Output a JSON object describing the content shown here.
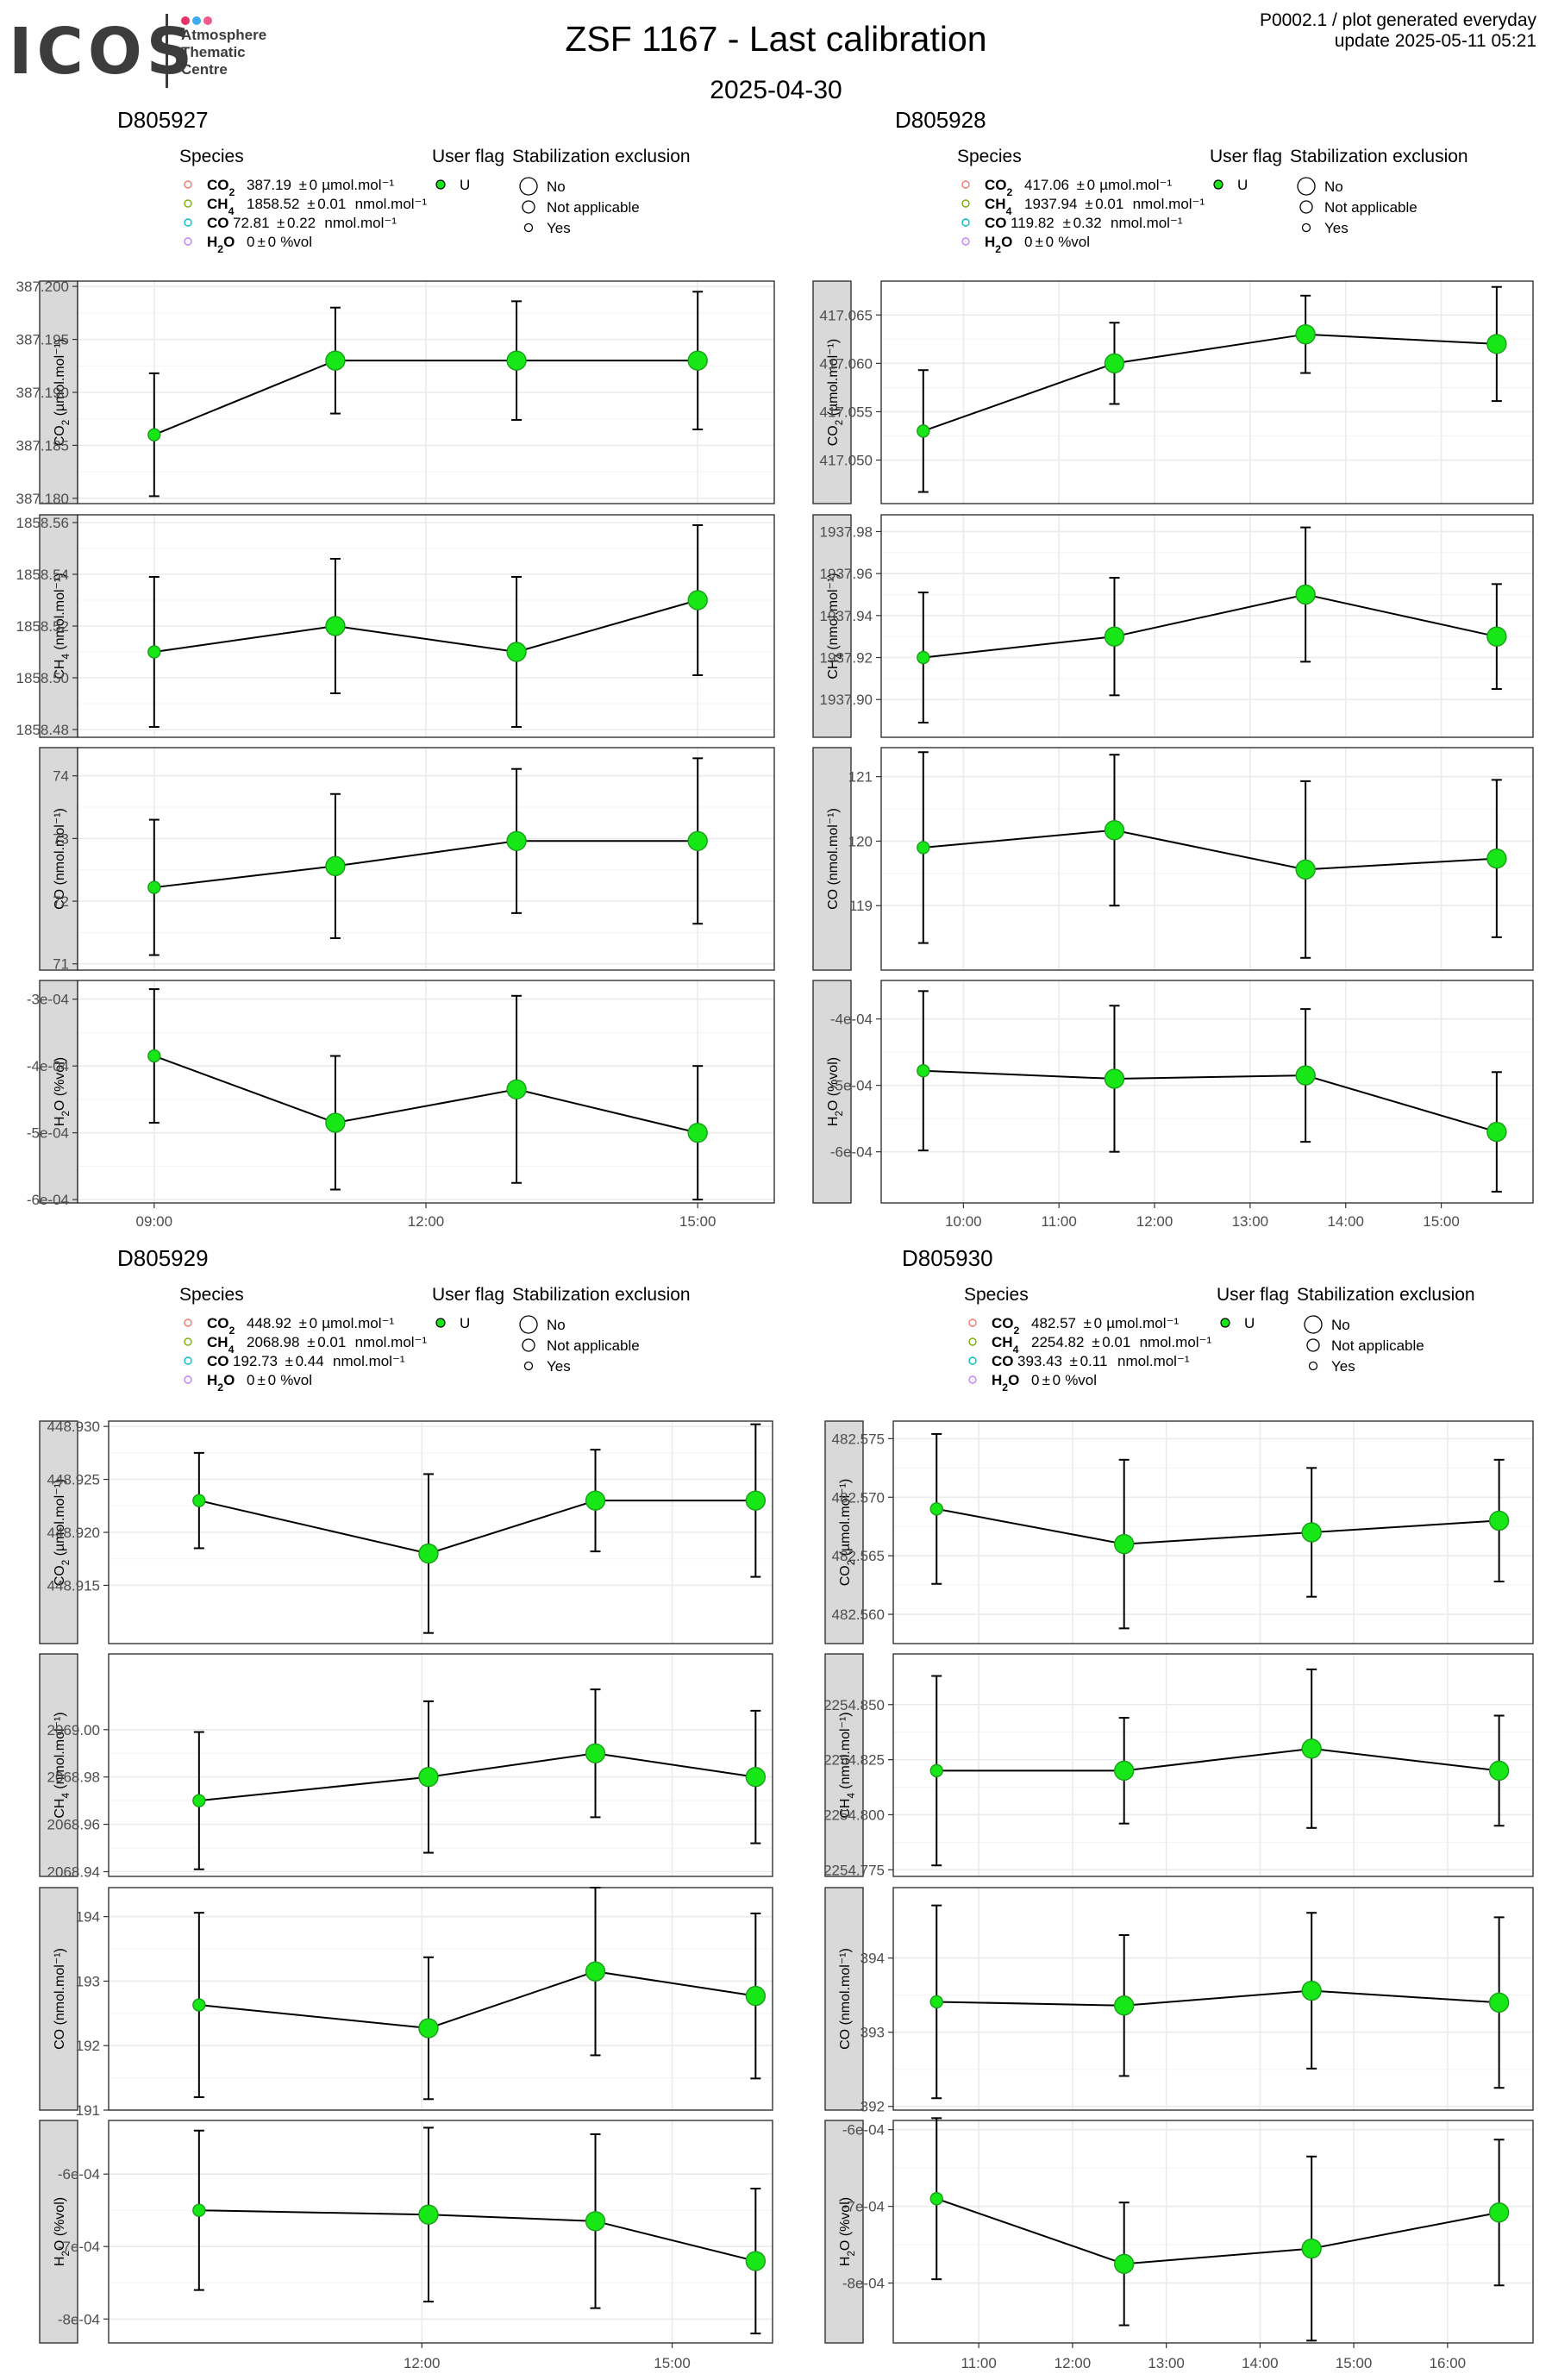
{
  "header": {
    "logo_text": "ICOS",
    "logo_subtitle": [
      "Atmosphere",
      "Thematic",
      "Centre"
    ],
    "title": "ZSF 1167 - Last calibration",
    "subtitle": "2025-04-30",
    "meta_line1": "P0002.1 / plot generated everyday",
    "meta_line2": "update  2025-05-11 05:21"
  },
  "colors": {
    "logo_dots": [
      "#e8336b",
      "#3fa9f5",
      "#f05a8c"
    ],
    "point_fill": "#17e617",
    "point_stroke": "#1a9e1a",
    "panel_strip": "#d9d9d9",
    "grid": "#ebebeb",
    "species_colors": {
      "CO2": "#f8766d",
      "CH4": "#7cae00",
      "CO": "#00bfc4",
      "H2O": "#c77cff"
    }
  },
  "legend_titles": {
    "species": "Species",
    "user_flag": "User flag",
    "stabilization": "Stabilization exclusion"
  },
  "chart_data": [
    {
      "type": "line",
      "cylinder": "D805927",
      "legend_species": [
        {
          "sp": "CO2",
          "value": "387.19",
          "unc": "0",
          "unit": "µmol.mol⁻¹"
        },
        {
          "sp": "CH4",
          "value": "1858.52",
          "unc": "0.01",
          "unit": "nmol.mol⁻¹"
        },
        {
          "sp": "CO",
          "value": "72.81",
          "unc": "0.22",
          "unit": "nmol.mol⁻¹"
        },
        {
          "sp": "H2O",
          "value": "0",
          "unc": "0",
          "unit": "%vol"
        }
      ],
      "user_flag": [
        "U"
      ],
      "stabilization": [
        "No",
        "Not applicable",
        "Yes"
      ],
      "x_ticks": [
        {
          "label": "09:00",
          "t": 9
        },
        {
          "label": "12:00",
          "t": 12
        },
        {
          "label": "15:00",
          "t": 15
        }
      ],
      "x_range": [
        8.25,
        15.75
      ],
      "points_time": [
        9.0,
        11.0,
        13.0,
        15.0
      ],
      "stab": [
        "Yes",
        "No",
        "No",
        "No"
      ],
      "facets": [
        {
          "species": "CO2",
          "unit": "µmol.mol⁻¹",
          "y": [
            387.186,
            387.193,
            387.193,
            387.193
          ],
          "err": [
            0.0058,
            0.005,
            0.0056,
            0.0065
          ],
          "ylim": [
            387.1795,
            387.2005
          ],
          "yticks": [
            "387.180",
            "387.185",
            "387.190",
            "387.195",
            "387.200"
          ]
        },
        {
          "species": "CH4",
          "unit": "nmol.mol⁻¹",
          "y": [
            1858.51,
            1858.52,
            1858.51,
            1858.53
          ],
          "err": [
            0.029,
            0.026,
            0.029,
            0.029
          ],
          "ylim": [
            1858.477,
            1858.563
          ],
          "yticks": [
            "1858.48",
            "1858.50",
            "1858.52",
            "1858.54",
            "1858.56"
          ]
        },
        {
          "species": "CO",
          "unit": "nmol.mol⁻¹",
          "y": [
            72.22,
            72.56,
            72.96,
            72.96
          ],
          "err": [
            1.08,
            1.15,
            1.15,
            1.32
          ],
          "ylim": [
            70.9,
            74.45
          ],
          "yticks": [
            "71",
            "72",
            "73",
            "74"
          ]
        },
        {
          "species": "H2O",
          "unit": "%vol",
          "y": [
            -0.000385,
            -0.000485,
            -0.000435,
            -0.0005
          ],
          "err": [
            0.0001,
            0.0001,
            0.00014,
            0.0001
          ],
          "ylim": [
            -0.000605,
            -0.000272
          ],
          "yticks": [
            "-6e-04",
            "-5e-04",
            "-4e-04",
            "-3e-04"
          ]
        }
      ]
    },
    {
      "type": "line",
      "cylinder": "D805928",
      "legend_species": [
        {
          "sp": "CO2",
          "value": "417.06",
          "unc": "0",
          "unit": "µmol.mol⁻¹"
        },
        {
          "sp": "CH4",
          "value": "1937.94",
          "unc": "0.01",
          "unit": "nmol.mol⁻¹"
        },
        {
          "sp": "CO",
          "value": "119.82",
          "unc": "0.32",
          "unit": "nmol.mol⁻¹"
        },
        {
          "sp": "H2O",
          "value": "0",
          "unc": "0",
          "unit": "%vol"
        }
      ],
      "user_flag": [
        "U"
      ],
      "stabilization": [
        "No",
        "Not applicable",
        "Yes"
      ],
      "x_ticks": [
        {
          "label": "10:00",
          "t": 10
        },
        {
          "label": "11:00",
          "t": 11
        },
        {
          "label": "12:00",
          "t": 12
        },
        {
          "label": "13:00",
          "t": 13
        },
        {
          "label": "14:00",
          "t": 14
        },
        {
          "label": "15:00",
          "t": 15
        }
      ],
      "x_range": [
        9.23,
        15.87
      ],
      "points_time": [
        9.58,
        11.58,
        13.58,
        15.58
      ],
      "stab": [
        "Yes",
        "No",
        "No",
        "No"
      ],
      "facets": [
        {
          "species": "CO2",
          "unit": "µmol.mol⁻¹",
          "y": [
            417.053,
            417.06,
            417.063,
            417.062
          ],
          "err": [
            0.0063,
            0.0042,
            0.004,
            0.0059
          ],
          "ylim": [
            417.0455,
            417.0685
          ],
          "yticks": [
            "417.050",
            "417.055",
            "417.060",
            "417.065"
          ]
        },
        {
          "species": "CH4",
          "unit": "nmol.mol⁻¹",
          "y": [
            1937.92,
            1937.93,
            1937.95,
            1937.93
          ],
          "err": [
            0.031,
            0.028,
            0.032,
            0.025
          ],
          "ylim": [
            1937.882,
            1937.988
          ],
          "yticks": [
            "1937.90",
            "1937.92",
            "1937.94",
            "1937.96",
            "1937.98"
          ]
        },
        {
          "species": "CO",
          "unit": "nmol.mol⁻¹",
          "y": [
            119.9,
            120.17,
            119.56,
            119.73
          ],
          "err": [
            1.48,
            1.17,
            1.37,
            1.22
          ],
          "ylim": [
            118.0,
            121.45
          ],
          "yticks": [
            "119",
            "120",
            "121"
          ]
        },
        {
          "species": "H2O",
          "unit": "%vol",
          "y": [
            -0.000478,
            -0.00049,
            -0.000485,
            -0.00057
          ],
          "err": [
            0.00012,
            0.00011,
            0.0001,
            9e-05
          ],
          "ylim": [
            -0.000677,
            -0.000342
          ],
          "yticks": [
            "-6e-04",
            "-5e-04",
            "-4e-04"
          ]
        }
      ]
    },
    {
      "type": "line",
      "cylinder": "D805929",
      "legend_species": [
        {
          "sp": "CO2",
          "value": "448.92",
          "unc": "0",
          "unit": "µmol.mol⁻¹"
        },
        {
          "sp": "CH4",
          "value": "2068.98",
          "unc": "0.01",
          "unit": "nmol.mol⁻¹"
        },
        {
          "sp": "CO",
          "value": "192.73",
          "unc": "0.44",
          "unit": "nmol.mol⁻¹"
        },
        {
          "sp": "H2O",
          "value": "0",
          "unc": "0",
          "unit": "%vol"
        }
      ],
      "user_flag": [
        "U"
      ],
      "stabilization": [
        "No",
        "Not applicable",
        "Yes"
      ],
      "x_ticks": [
        {
          "label": "12:00",
          "t": 12
        },
        {
          "label": "15:00",
          "t": 15
        }
      ],
      "x_range": [
        8.35,
        16.1
      ],
      "points_time": [
        9.33,
        12.08,
        14.08,
        16.0
      ],
      "stab": [
        "Yes",
        "No",
        "No",
        "No"
      ],
      "facets": [
        {
          "species": "CO2",
          "unit": "µmol.mol⁻¹",
          "y": [
            448.923,
            448.918,
            448.923,
            448.923
          ],
          "err": [
            0.0045,
            0.0075,
            0.0048,
            0.0072
          ],
          "ylim": [
            448.9095,
            448.9305
          ],
          "yticks": [
            "448.915",
            "448.920",
            "448.925",
            "448.930"
          ]
        },
        {
          "species": "CH4",
          "unit": "nmol.mol⁻¹",
          "y": [
            2068.97,
            2068.98,
            2068.99,
            2068.98
          ],
          "err": [
            0.029,
            0.032,
            0.027,
            0.028
          ],
          "ylim": [
            2068.938,
            2069.032
          ],
          "yticks": [
            "2068.94",
            "2068.96",
            "2068.98",
            "2069.00"
          ]
        },
        {
          "species": "CO",
          "unit": "nmol.mol⁻¹",
          "y": [
            192.63,
            192.27,
            193.15,
            192.77
          ],
          "err": [
            1.43,
            1.1,
            1.3,
            1.28
          ],
          "ylim": [
            191.0,
            194.45
          ],
          "yticks": [
            "191",
            "192",
            "193",
            "194"
          ]
        },
        {
          "species": "H2O",
          "unit": "%vol",
          "y": [
            -0.00065,
            -0.000656,
            -0.000665,
            -0.00072
          ],
          "err": [
            0.00011,
            0.00012,
            0.00012,
            0.0001
          ],
          "ylim": [
            -0.000833,
            -0.000526
          ],
          "yticks": [
            "-8e-04",
            "-7e-04",
            "-6e-04"
          ]
        }
      ]
    },
    {
      "type": "line",
      "cylinder": "D805930",
      "legend_species": [
        {
          "sp": "CO2",
          "value": "482.57",
          "unc": "0",
          "unit": "µmol.mol⁻¹"
        },
        {
          "sp": "CH4",
          "value": "2254.82",
          "unc": "0.01",
          "unit": "nmol.mol⁻¹"
        },
        {
          "sp": "CO",
          "value": "393.43",
          "unc": "0.11",
          "unit": "nmol.mol⁻¹"
        },
        {
          "sp": "H2O",
          "value": "0",
          "unc": "0",
          "unit": "%vol"
        }
      ],
      "user_flag": [
        "U"
      ],
      "stabilization": [
        "No",
        "Not applicable",
        "Yes"
      ],
      "x_ticks": [
        {
          "label": "11:00",
          "t": 11
        },
        {
          "label": "12:00",
          "t": 12
        },
        {
          "label": "13:00",
          "t": 13
        },
        {
          "label": "14:00",
          "t": 14
        },
        {
          "label": "15:00",
          "t": 15
        },
        {
          "label": "16:00",
          "t": 16
        }
      ],
      "x_range": [
        10.18,
        16.82
      ],
      "points_time": [
        10.55,
        12.55,
        14.55,
        16.55
      ],
      "stab": [
        "Yes",
        "No",
        "No",
        "No"
      ],
      "facets": [
        {
          "species": "CO2",
          "unit": "µmol.mol⁻¹",
          "y": [
            482.569,
            482.566,
            482.567,
            482.568
          ],
          "err": [
            0.0064,
            0.0072,
            0.0055,
            0.0052
          ],
          "ylim": [
            482.5575,
            482.5765
          ],
          "yticks": [
            "482.560",
            "482.565",
            "482.570",
            "482.575"
          ]
        },
        {
          "species": "CH4",
          "unit": "nmol.mol⁻¹",
          "y": [
            2254.82,
            2254.82,
            2254.83,
            2254.82
          ],
          "err": [
            0.043,
            0.024,
            0.036,
            0.025
          ],
          "ylim": [
            2254.772,
            2254.873
          ],
          "yticks": [
            "2254.775",
            "2254.800",
            "2254.825",
            "2254.850"
          ]
        },
        {
          "species": "CO",
          "unit": "nmol.mol⁻¹",
          "y": [
            393.41,
            393.36,
            393.56,
            393.4
          ],
          "err": [
            1.3,
            0.95,
            1.05,
            1.15
          ],
          "ylim": [
            391.95,
            394.95
          ],
          "yticks": [
            "392",
            "393",
            "394"
          ]
        },
        {
          "species": "H2O",
          "unit": "%vol",
          "y": [
            -0.00069,
            -0.000775,
            -0.000755,
            -0.000708
          ],
          "err": [
            0.000105,
            8e-05,
            0.00012,
            9.5e-05
          ],
          "ylim": [
            -0.000878,
            -0.000588
          ],
          "yticks": [
            "-8e-04",
            "-7e-04",
            "-6e-04"
          ]
        }
      ]
    }
  ]
}
